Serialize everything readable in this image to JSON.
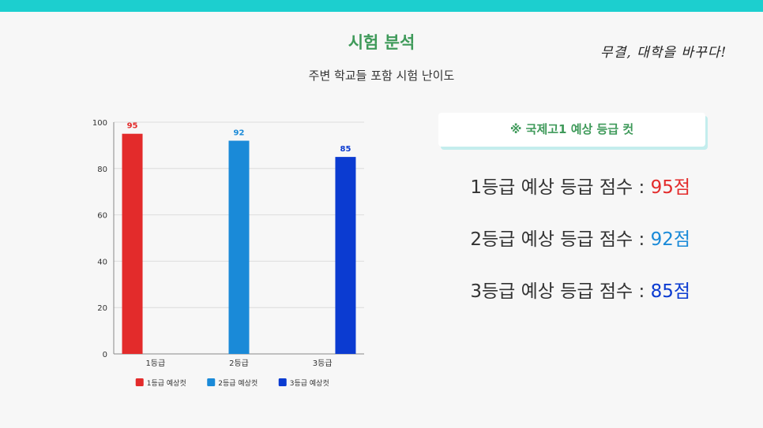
{
  "header": {
    "title": "시험 분석",
    "subtitle": "주변 학교들 포함 시험 난이도",
    "brand": "무결, 대학을 바꾸다!"
  },
  "colors": {
    "accent": "#1ccfcf",
    "title_green": "#3f9a5a",
    "grade1": "#e32b2b",
    "grade2": "#1a8ad8",
    "grade3": "#0b3bd1"
  },
  "cutoff": {
    "title": "※ 국제고1 예상 등급 컷",
    "rows": [
      {
        "label": "1등급 예상 등급 점수 : ",
        "value": "95점",
        "color": "#e32b2b"
      },
      {
        "label": "2등급 예상 등급 점수 : ",
        "value": "92점",
        "color": "#1a8ad8"
      },
      {
        "label": "3등급 예상 등급 점수 : ",
        "value": "85점",
        "color": "#0b3bd1"
      }
    ]
  },
  "chart_data": {
    "type": "bar",
    "categories": [
      "1등급",
      "2등급",
      "3등급"
    ],
    "series": [
      {
        "name": "1등급 예상컷",
        "color": "#e32b2b",
        "values": [
          95,
          null,
          null
        ]
      },
      {
        "name": "2등급 예상컷",
        "color": "#1a8ad8",
        "values": [
          null,
          92,
          null
        ]
      },
      {
        "name": "3등급 예상컷",
        "color": "#0b3bd1",
        "values": [
          null,
          null,
          85
        ]
      }
    ],
    "ylim": [
      0,
      100
    ],
    "yticks": [
      0,
      20,
      40,
      60,
      80,
      100
    ],
    "grid": true,
    "legend": "bottom"
  }
}
